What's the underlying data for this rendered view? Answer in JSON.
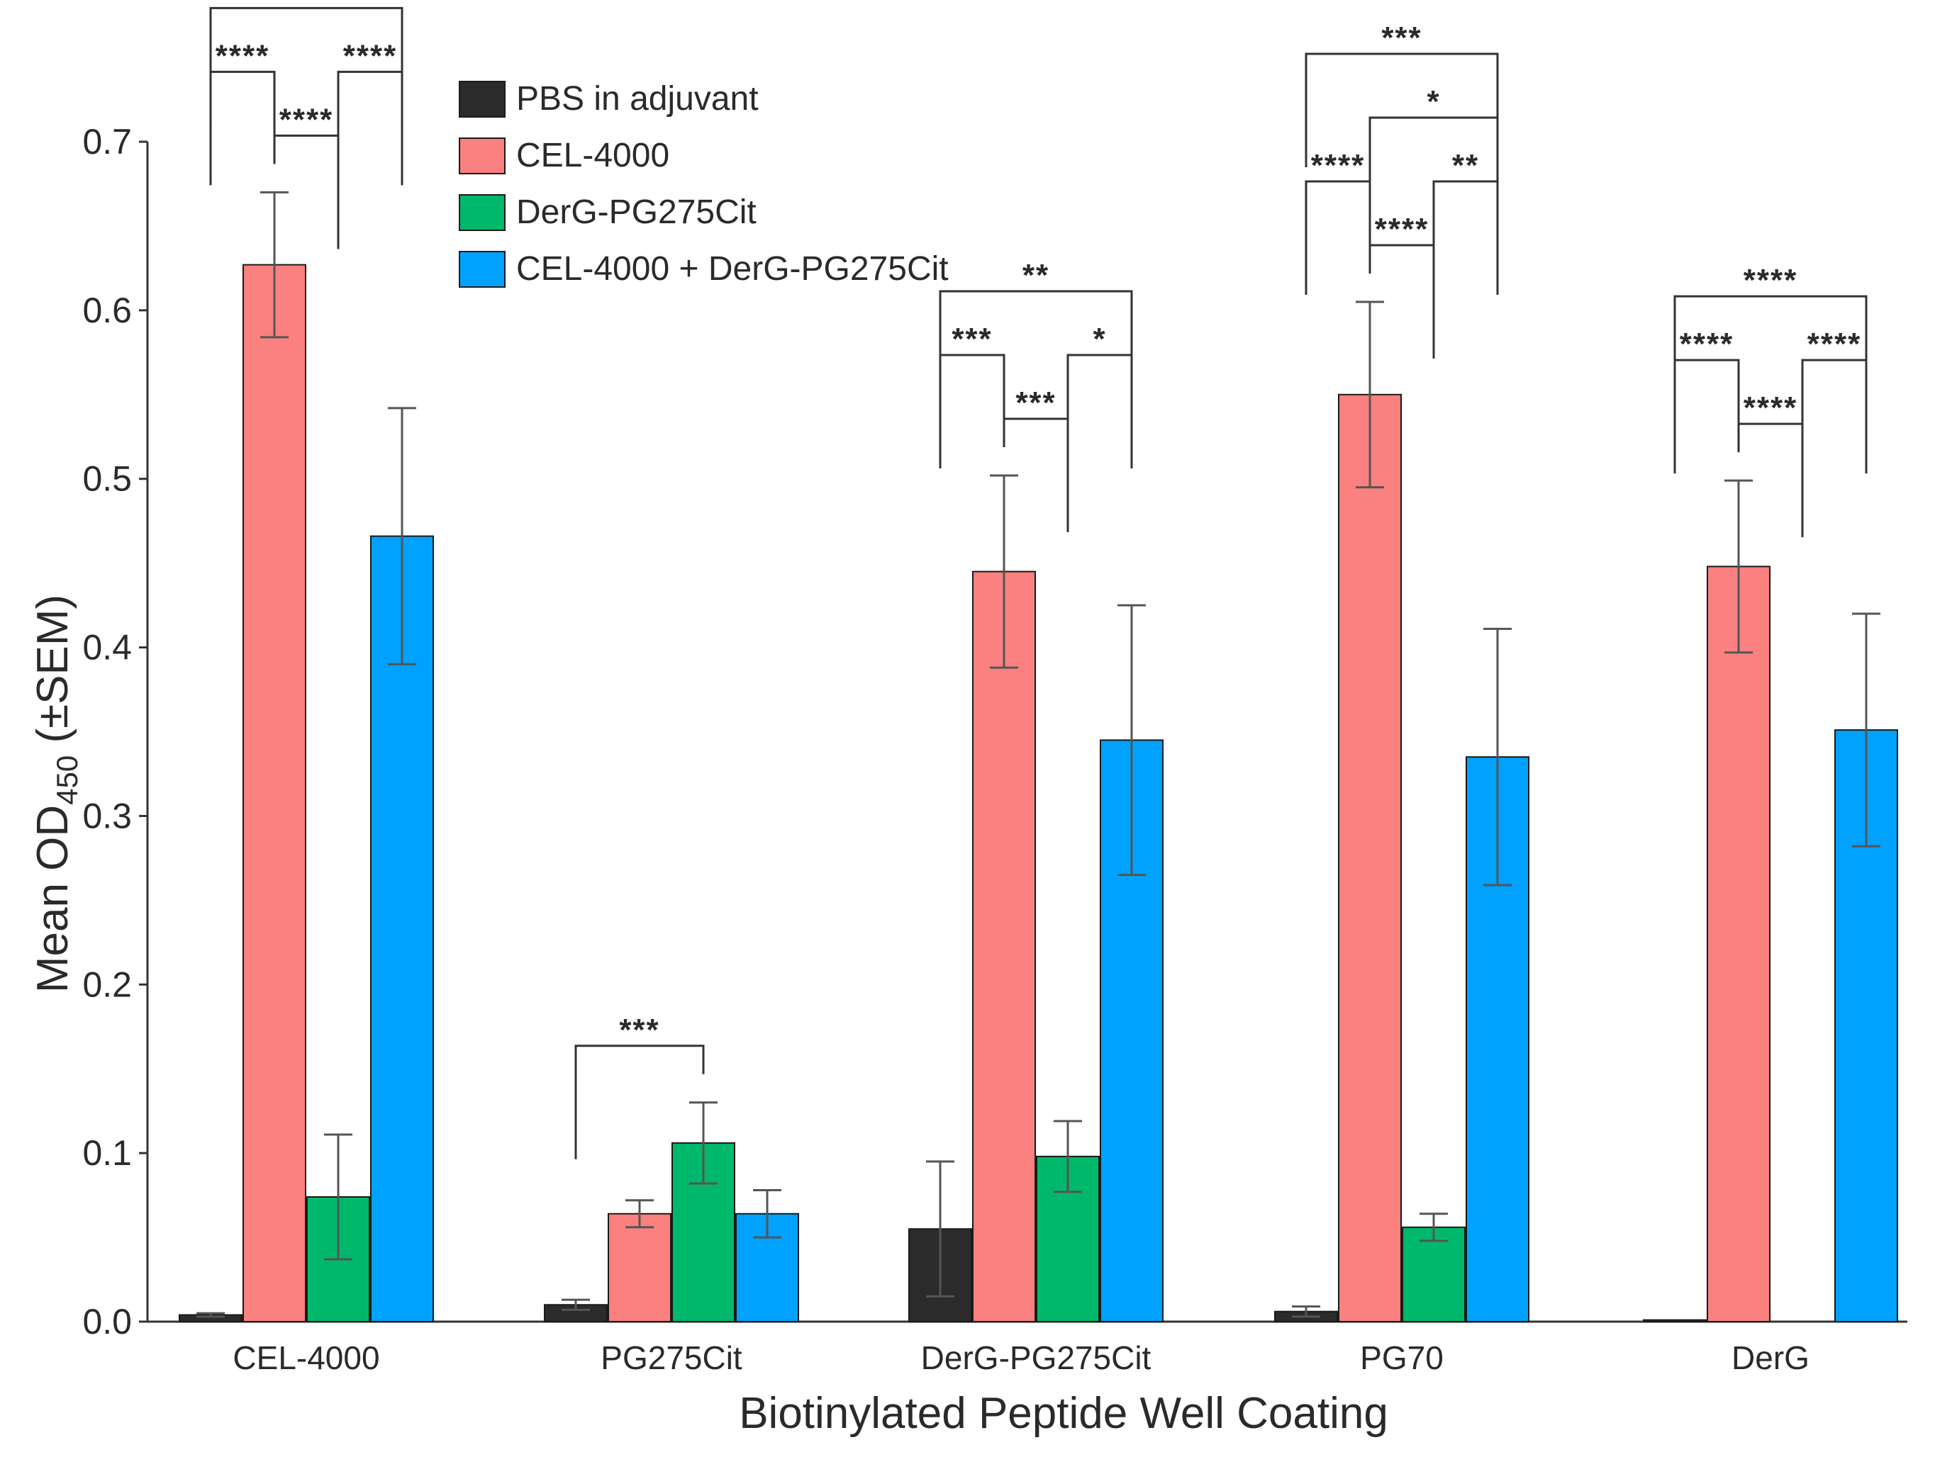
{
  "chart_data": {
    "type": "bar",
    "xlabel": "Biotinylated Peptide Well Coating",
    "ylabel": "Mean OD",
    "ylabel_sub": "450",
    "ylabel_suffix": " (±SEM)",
    "ylim": [
      0,
      0.7
    ],
    "yticks": [
      {
        "value": 0.0,
        "label": "0.0"
      },
      {
        "value": 0.1,
        "label": "0.1"
      },
      {
        "value": 0.2,
        "label": "0.2"
      },
      {
        "value": 0.3,
        "label": "0.3"
      },
      {
        "value": 0.4,
        "label": "0.4"
      },
      {
        "value": 0.5,
        "label": "0.5"
      },
      {
        "value": 0.6,
        "label": "0.6"
      },
      {
        "value": 0.7,
        "label": "0.7"
      }
    ],
    "grid": false,
    "legend_position": "top-center",
    "categories": [
      "CEL-4000",
      "PG275Cit",
      "DerG-PG275Cit",
      "PG70",
      "DerG"
    ],
    "series": [
      {
        "name": "PBS in adjuvant",
        "color": "#2b2b2b",
        "values": [
          0.004,
          0.01,
          0.055,
          0.006,
          0.001
        ],
        "errors": [
          0.001,
          0.003,
          0.04,
          0.003,
          0.0
        ]
      },
      {
        "name": "CEL-4000",
        "color": "#fb8080",
        "values": [
          0.627,
          0.064,
          0.445,
          0.55,
          0.448
        ],
        "errors": [
          0.043,
          0.008,
          0.057,
          0.055,
          0.051
        ]
      },
      {
        "name": "DerG-PG275Cit",
        "color": "#00b86b",
        "values": [
          0.074,
          0.106,
          0.098,
          0.056,
          null
        ],
        "errors": [
          0.037,
          0.024,
          0.021,
          0.008,
          null
        ]
      },
      {
        "name": "CEL-4000 + DerG-PG275Cit",
        "color": "#00a2ff",
        "values": [
          0.466,
          0.064,
          0.345,
          0.335,
          0.351
        ],
        "errors": [
          0.076,
          0.014,
          0.08,
          0.076,
          0.069
        ]
      }
    ],
    "significance": [
      {
        "category": 0,
        "from": 0,
        "to": 3,
        "label": "****"
      },
      {
        "category": 0,
        "from": 1,
        "to": 2,
        "label": "****"
      },
      {
        "category": 0,
        "from": 0,
        "to": 1,
        "label": "****"
      },
      {
        "category": 0,
        "from": 2,
        "to": 3,
        "label": "****"
      },
      {
        "category": 1,
        "from": 0,
        "to": 2,
        "label": "***"
      },
      {
        "category": 2,
        "from": 0,
        "to": 3,
        "label": "**"
      },
      {
        "category": 2,
        "from": 1,
        "to": 2,
        "label": "***"
      },
      {
        "category": 2,
        "from": 0,
        "to": 1,
        "label": "***"
      },
      {
        "category": 2,
        "from": 2,
        "to": 3,
        "label": "*"
      },
      {
        "category": 3,
        "from": 0,
        "to": 3,
        "label": "***"
      },
      {
        "category": 3,
        "from": 1,
        "to": 3,
        "label": "*"
      },
      {
        "category": 3,
        "from": 1,
        "to": 2,
        "label": "****"
      },
      {
        "category": 3,
        "from": 0,
        "to": 1,
        "label": "****"
      },
      {
        "category": 3,
        "from": 2,
        "to": 3,
        "label": "**"
      },
      {
        "category": 4,
        "from": 0,
        "to": 3,
        "label": "****"
      },
      {
        "category": 4,
        "from": 1,
        "to": 2,
        "label": "****"
      },
      {
        "category": 4,
        "from": 0,
        "to": 1,
        "label": "****"
      },
      {
        "category": 4,
        "from": 2,
        "to": 3,
        "label": "****"
      }
    ]
  }
}
